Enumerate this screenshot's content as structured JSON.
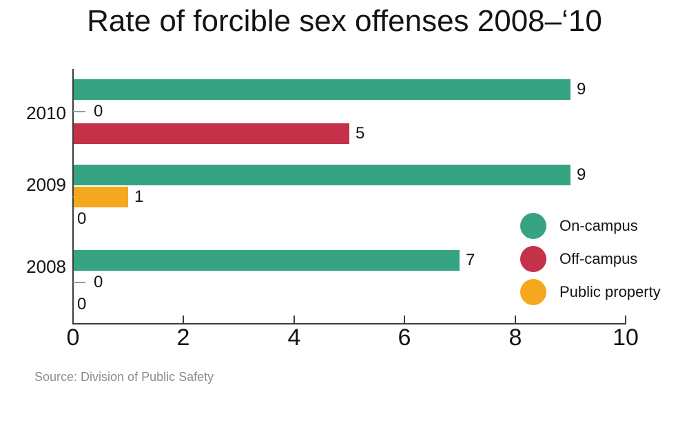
{
  "chart_data": {
    "type": "bar",
    "orientation": "horizontal",
    "title": "Rate of forcible sex offenses 2008–‘10",
    "categories": [
      "2010",
      "2009",
      "2008"
    ],
    "group_slot_order": [
      "On-campus",
      "Public property",
      "Off-campus"
    ],
    "series": [
      {
        "name": "On-campus",
        "color": "#36a482",
        "values": [
          9,
          9,
          7
        ]
      },
      {
        "name": "Public property",
        "color": "#f5a71e",
        "values": [
          0,
          1,
          0
        ]
      },
      {
        "name": "Off-campus",
        "color": "#c43148",
        "values": [
          5,
          0,
          0
        ]
      }
    ],
    "value_labels_shown": true,
    "x_axis": {
      "min": 0,
      "max": 10,
      "ticks": [
        0,
        2,
        4,
        6,
        8,
        10
      ]
    },
    "legend": {
      "position": "inside-right",
      "items": [
        "On-campus",
        "Off-campus",
        "Public property"
      ]
    },
    "source": "Source: Division of Public Safety",
    "colors": {
      "background": "#ffffff",
      "axis": "#3c3c3c",
      "year_tick": "#9a9a9a",
      "text": "#141414",
      "source_text": "#8c8c8c"
    }
  }
}
